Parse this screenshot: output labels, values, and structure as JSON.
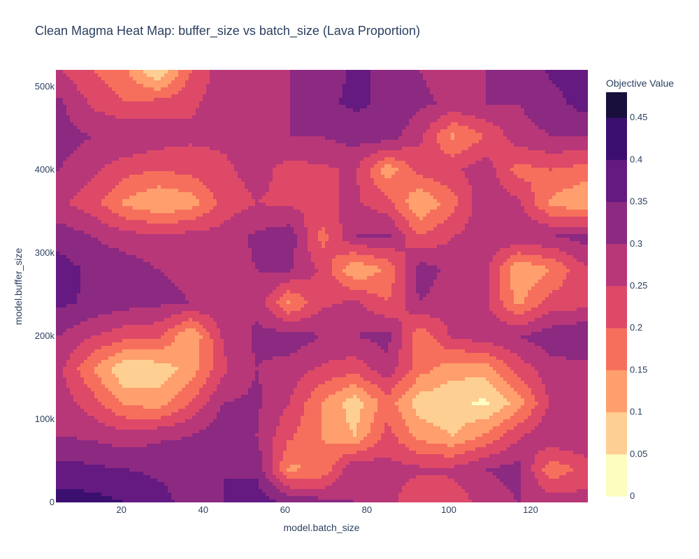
{
  "chart_data": {
    "type": "heatmap",
    "style": "filled-contour",
    "title": "Clean Magma Heat Map: buffer_size vs batch_size (Lava Proportion)",
    "xlabel": "model.batch_size",
    "ylabel": "model.buffer_size",
    "xlim": [
      4,
      134
    ],
    "ylim": [
      0,
      520000
    ],
    "x_ticks": [
      20,
      40,
      60,
      80,
      100,
      120
    ],
    "x_tick_labels": [
      "20",
      "40",
      "60",
      "80",
      "100",
      "120"
    ],
    "y_ticks": [
      0,
      100000,
      200000,
      300000,
      400000,
      500000
    ],
    "y_tick_labels": [
      "0",
      "100k",
      "200k",
      "300k",
      "400k",
      "500k"
    ],
    "colorbar": {
      "title": "Objective Value",
      "range": [
        0,
        0.48
      ],
      "ticks": [
        0,
        0.05,
        0.1,
        0.15,
        0.2,
        0.25,
        0.3,
        0.35,
        0.4,
        0.45
      ],
      "tick_labels": [
        "0",
        "0.05",
        "0.1",
        "0.15",
        "0.2",
        "0.25",
        "0.3",
        "0.35",
        "0.4",
        "0.45"
      ],
      "levels": [
        0,
        0.05,
        0.1,
        0.15,
        0.2,
        0.25,
        0.3,
        0.35,
        0.4,
        0.45,
        0.48
      ],
      "colors": [
        "#fcfdbf",
        "#fecf92",
        "#fe9f6d",
        "#f66f5c",
        "#de4968",
        "#b73779",
        "#8c2981",
        "#641a80",
        "#3b0f70",
        "#180f3d",
        "#000004"
      ]
    },
    "colorscale": "Magma (reversed)",
    "x": [
      5,
      13,
      21,
      29,
      37,
      45,
      53,
      61,
      69,
      77,
      85,
      93,
      101,
      109,
      117,
      125,
      133
    ],
    "y": [
      0,
      40000,
      80000,
      120000,
      160000,
      200000,
      240000,
      280000,
      320000,
      360000,
      400000,
      440000,
      480000,
      520000
    ],
    "z": [
      [
        0.42,
        0.42,
        0.4,
        0.37,
        0.33,
        0.35,
        0.38,
        0.34,
        0.32,
        0.3,
        0.27,
        0.2,
        0.22,
        0.27,
        0.3,
        0.28,
        0.27
      ],
      [
        0.37,
        0.36,
        0.35,
        0.34,
        0.33,
        0.35,
        0.34,
        0.14,
        0.16,
        0.3,
        0.27,
        0.26,
        0.26,
        0.3,
        0.32,
        0.16,
        0.22
      ],
      [
        0.3,
        0.29,
        0.27,
        0.29,
        0.3,
        0.34,
        0.3,
        0.21,
        0.15,
        0.1,
        0.22,
        0.13,
        0.1,
        0.16,
        0.24,
        0.3,
        0.3
      ],
      [
        0.28,
        0.22,
        0.14,
        0.12,
        0.2,
        0.3,
        0.31,
        0.25,
        0.15,
        0.07,
        0.18,
        0.07,
        0.06,
        0.04,
        0.12,
        0.26,
        0.28
      ],
      [
        0.26,
        0.15,
        0.05,
        0.07,
        0.12,
        0.24,
        0.3,
        0.28,
        0.24,
        0.22,
        0.28,
        0.17,
        0.12,
        0.12,
        0.22,
        0.28,
        0.28
      ],
      [
        0.3,
        0.25,
        0.22,
        0.21,
        0.1,
        0.26,
        0.31,
        0.33,
        0.3,
        0.3,
        0.32,
        0.16,
        0.26,
        0.28,
        0.3,
        0.33,
        0.35
      ],
      [
        0.36,
        0.34,
        0.32,
        0.31,
        0.3,
        0.29,
        0.29,
        0.14,
        0.24,
        0.26,
        0.2,
        0.3,
        0.27,
        0.26,
        0.14,
        0.22,
        0.23
      ],
      [
        0.37,
        0.34,
        0.33,
        0.3,
        0.29,
        0.28,
        0.3,
        0.31,
        0.24,
        0.1,
        0.16,
        0.33,
        0.28,
        0.27,
        0.1,
        0.15,
        0.24
      ],
      [
        0.33,
        0.3,
        0.27,
        0.26,
        0.27,
        0.27,
        0.31,
        0.33,
        0.18,
        0.3,
        0.31,
        0.2,
        0.25,
        0.28,
        0.3,
        0.3,
        0.32
      ],
      [
        0.26,
        0.22,
        0.14,
        0.1,
        0.12,
        0.22,
        0.25,
        0.24,
        0.24,
        0.26,
        0.22,
        0.1,
        0.18,
        0.29,
        0.26,
        0.14,
        0.1
      ],
      [
        0.3,
        0.26,
        0.22,
        0.2,
        0.22,
        0.24,
        0.27,
        0.23,
        0.24,
        0.26,
        0.12,
        0.22,
        0.24,
        0.28,
        0.18,
        0.2,
        0.18
      ],
      [
        0.32,
        0.3,
        0.3,
        0.28,
        0.26,
        0.26,
        0.28,
        0.3,
        0.3,
        0.32,
        0.33,
        0.26,
        0.14,
        0.2,
        0.28,
        0.3,
        0.3
      ],
      [
        0.31,
        0.24,
        0.2,
        0.22,
        0.24,
        0.28,
        0.26,
        0.3,
        0.34,
        0.36,
        0.34,
        0.31,
        0.29,
        0.3,
        0.3,
        0.33,
        0.37
      ],
      [
        0.25,
        0.2,
        0.16,
        0.04,
        0.2,
        0.28,
        0.3,
        0.3,
        0.32,
        0.36,
        0.34,
        0.3,
        0.28,
        0.3,
        0.31,
        0.36,
        0.38
      ]
    ]
  }
}
